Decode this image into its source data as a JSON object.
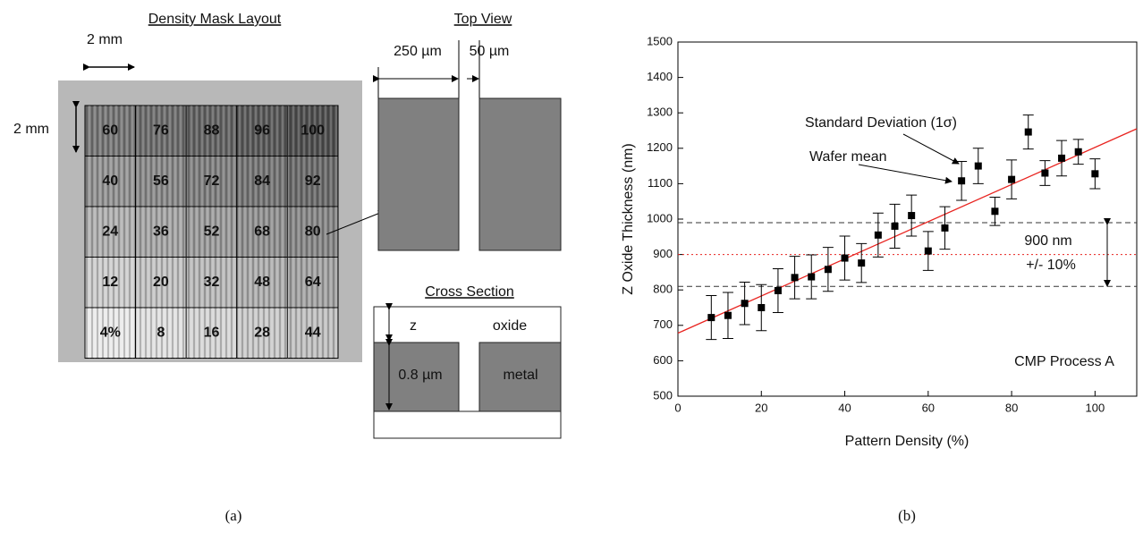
{
  "panel_a": {
    "mask_title": "Density Mask Layout",
    "width_label": "2 mm",
    "height_label": "2 mm",
    "cells": [
      [
        "60",
        "76",
        "88",
        "96",
        "100"
      ],
      [
        "40",
        "56",
        "72",
        "84",
        "92"
      ],
      [
        "24",
        "36",
        "52",
        "68",
        "80"
      ],
      [
        "12",
        "20",
        "32",
        "48",
        "64"
      ],
      [
        "4%",
        "8",
        "16",
        "28",
        "44"
      ]
    ],
    "top_view": {
      "title": "Top View",
      "line_width": "250 µm",
      "space_width": "50 µm"
    },
    "cross_section": {
      "title": "Cross Section",
      "z": "z",
      "oxide": "oxide",
      "metal_height": "0.8 µm",
      "metal": "metal"
    },
    "caption": "(a)"
  },
  "chart_data": {
    "type": "scatter",
    "x_label": "Pattern Density (%)",
    "y_label": "Z Oxide Thickness (nm)",
    "x": [
      8,
      12,
      16,
      20,
      24,
      28,
      32,
      36,
      40,
      44,
      48,
      52,
      56,
      60,
      64,
      68,
      72,
      76,
      80,
      84,
      88,
      92,
      96,
      100
    ],
    "series": [
      {
        "color": "#000000",
        "values": [
          722,
          728,
          762,
          750,
          798,
          835,
          837,
          858,
          890,
          876,
          955,
          980,
          1010,
          910,
          975,
          1108,
          1150,
          1022,
          1112,
          1246,
          1130,
          1172,
          1190,
          1128
        ],
        "errors": [
          62,
          65,
          60,
          65,
          62,
          60,
          62,
          62,
          62,
          55,
          62,
          62,
          58,
          55,
          60,
          55,
          50,
          40,
          55,
          48,
          35,
          50,
          35,
          42
        ]
      }
    ],
    "fit": {
      "color": "#e8231f",
      "x": [
        0,
        110
      ],
      "values": [
        678,
        1255
      ]
    },
    "hlines": [
      {
        "value": 990,
        "color": "#333333",
        "style": "dashed"
      },
      {
        "value": 900,
        "color": "#e8231f",
        "style": "dotted"
      },
      {
        "value": 810,
        "color": "#333333",
        "style": "dashed"
      }
    ],
    "annotations": [
      "Standard Deviation (1σ)",
      "Wafer mean",
      "900 nm",
      "+/- 10%",
      "CMP Process A"
    ],
    "xlim": [
      0,
      110
    ],
    "xticks": [
      0,
      20,
      40,
      60,
      80,
      100
    ],
    "ylim": [
      500,
      1500
    ],
    "yticks": [
      500,
      600,
      700,
      800,
      900,
      1000,
      1100,
      1200,
      1300,
      1400,
      1500
    ],
    "caption": "(b)"
  }
}
